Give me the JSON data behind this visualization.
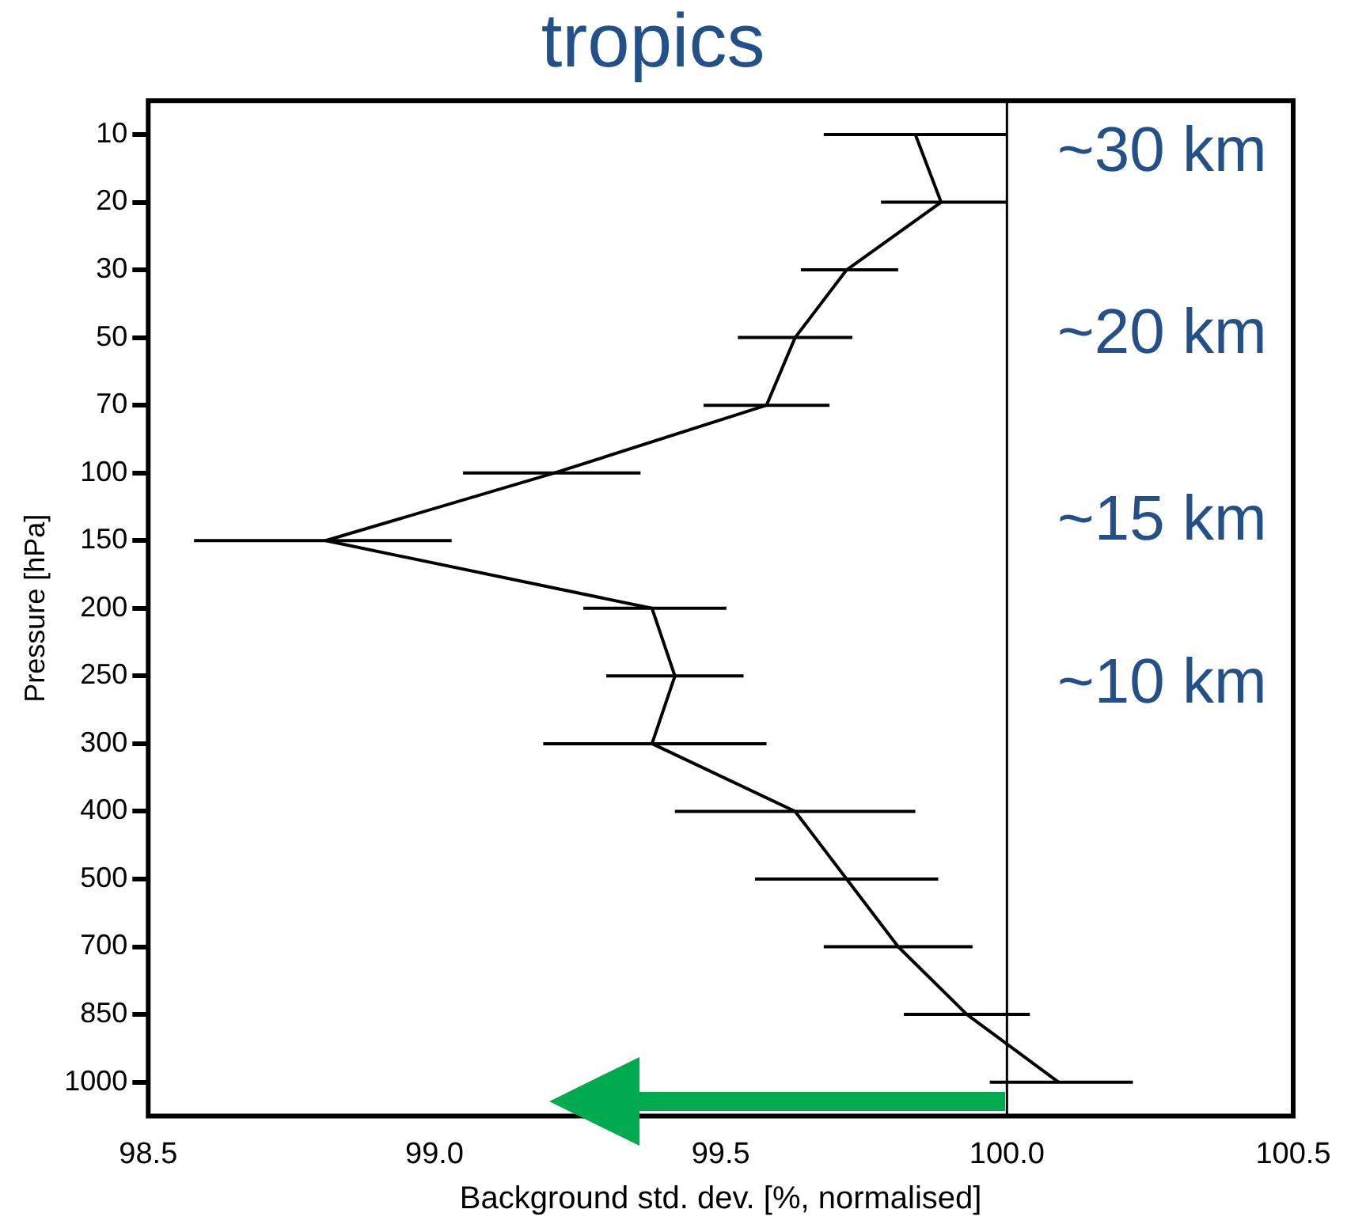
{
  "chart_data": {
    "type": "line",
    "orientation": "horizontal",
    "title": "tropics",
    "xlabel": "Background std. dev. [%, normalised]",
    "ylabel": "Pressure [hPa]",
    "categories": [
      "10",
      "20",
      "30",
      "50",
      "70",
      "100",
      "150",
      "200",
      "250",
      "300",
      "400",
      "500",
      "700",
      "850",
      "1000"
    ],
    "series": [
      {
        "color": "#000000",
        "values": [
          99.84,
          99.885,
          99.72,
          99.63,
          99.58,
          99.21,
          98.81,
          99.38,
          99.42,
          99.38,
          99.63,
          99.72,
          99.81,
          99.93,
          100.09
        ],
        "errors": [
          [
            99.68,
            100.0
          ],
          [
            99.78,
            100.0
          ],
          [
            99.64,
            99.81
          ],
          [
            99.53,
            99.73
          ],
          [
            99.47,
            99.69
          ],
          [
            99.05,
            99.36
          ],
          [
            98.58,
            99.03
          ],
          [
            99.26,
            99.51
          ],
          [
            99.3,
            99.54
          ],
          [
            99.19,
            99.58
          ],
          [
            99.42,
            99.84
          ],
          [
            99.56,
            99.88
          ],
          [
            99.68,
            99.94
          ],
          [
            99.82,
            100.04
          ],
          [
            99.97,
            100.22
          ]
        ]
      }
    ],
    "xlim": [
      98.5,
      100.5
    ],
    "xticks": [
      {
        "value": 98.5,
        "label": "98.5"
      },
      {
        "value": 99,
        "label": "99.0"
      },
      {
        "value": 99.5,
        "label": "99.5"
      },
      {
        "value": 100,
        "label": "100.0"
      },
      {
        "value": 100.5,
        "label": "100.5"
      }
    ],
    "ref_lines": [
      {
        "axis": "x",
        "value": 100,
        "color": "#000000"
      }
    ],
    "annotations": [
      "~30 km",
      "~20 km",
      "~15 km",
      "~10 km"
    ],
    "grid": false,
    "legend": false,
    "marker": "none",
    "line_style": "solid"
  }
}
